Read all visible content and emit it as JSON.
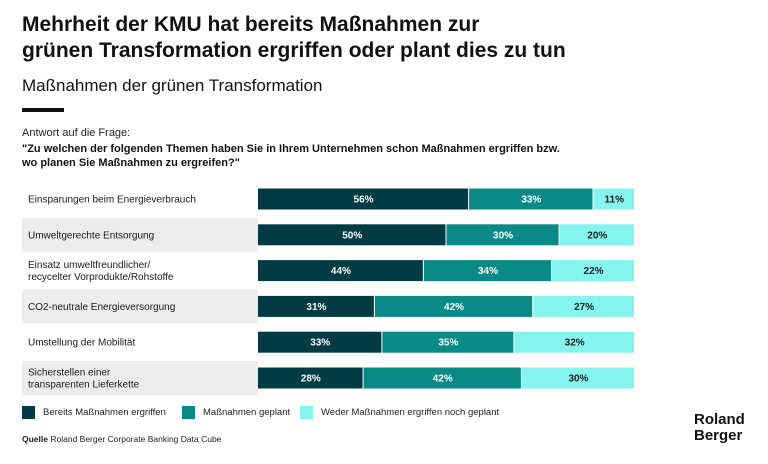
{
  "header": {
    "title_line1": "Mehrheit der KMU hat bereits Maßnahmen zur",
    "title_line2": "grünen Transformation ergriffen oder plant dies zu tun",
    "subtitle": "Maßnahmen der grünen Transformation"
  },
  "question": {
    "intro": "Antwort auf die Frage:",
    "line1": "\"Zu welchen der folgenden Themen haben Sie in Ihrem Unternehmen schon Maßnahmen ergriffen bzw.",
    "line2": "wo planen Sie Maßnahmen zu ergreifen?\""
  },
  "colors": {
    "dark_teal": "#023b43",
    "teal": "#0a8a86",
    "light_cyan": "#86f4ee",
    "row_bg": "#ececec"
  },
  "chart_data": {
    "type": "bar",
    "orientation": "horizontal",
    "stacked": true,
    "unit": "%",
    "categories": [
      [
        "Einsparungen beim Energieverbrauch"
      ],
      [
        "Umweltgerechte Entsorgung"
      ],
      [
        "Einsatz umweltfreundlicher/",
        "recycelter Vorprodukte/Rohstoffe"
      ],
      [
        "CO2-neutrale Energieversorgung"
      ],
      [
        "Umstellung der Mobilität"
      ],
      [
        "Sicherstellen einer",
        "transparenten Lieferkette"
      ]
    ],
    "series": [
      {
        "name": "Bereits Maßnahmen ergriffen",
        "color": "#023b43",
        "label_color": "#ffffff",
        "values": [
          56,
          50,
          44,
          31,
          33,
          28
        ]
      },
      {
        "name": "Maßnahmen geplant",
        "color": "#0a8a86",
        "label_color": "#ffffff",
        "values": [
          33,
          30,
          34,
          42,
          35,
          42
        ]
      },
      {
        "name": "Weder Maßnahmen ergriffen noch geplant",
        "color": "#86f4ee",
        "label_color": "#1a1a1a",
        "values": [
          11,
          20,
          22,
          27,
          32,
          30
        ]
      }
    ],
    "xlim": [
      0,
      100
    ],
    "legend": "bottom"
  },
  "source": {
    "label": "Quelle",
    "text": "Roland Berger Corporate Banking Data Cube"
  },
  "logo": {
    "line1": "Roland",
    "line2": "Berger"
  }
}
